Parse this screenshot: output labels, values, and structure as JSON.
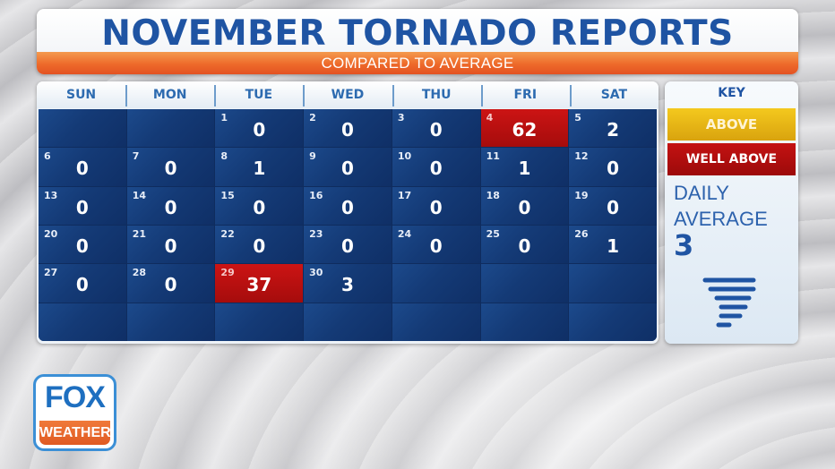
{
  "header": {
    "title": "NOVEMBER TORNADO REPORTS",
    "subtitle": "COMPARED TO AVERAGE"
  },
  "calendar": {
    "days_of_week": [
      "SUN",
      "MON",
      "TUE",
      "WED",
      "THU",
      "FRI",
      "SAT"
    ],
    "cells": [
      {
        "day": "",
        "count": "",
        "status": "empty"
      },
      {
        "day": "",
        "count": "",
        "status": "empty"
      },
      {
        "day": "1",
        "count": "0",
        "status": "normal"
      },
      {
        "day": "2",
        "count": "0",
        "status": "normal"
      },
      {
        "day": "3",
        "count": "0",
        "status": "normal"
      },
      {
        "day": "4",
        "count": "62",
        "status": "well-above"
      },
      {
        "day": "5",
        "count": "2",
        "status": "normal"
      },
      {
        "day": "6",
        "count": "0",
        "status": "normal"
      },
      {
        "day": "7",
        "count": "0",
        "status": "normal"
      },
      {
        "day": "8",
        "count": "1",
        "status": "normal"
      },
      {
        "day": "9",
        "count": "0",
        "status": "normal"
      },
      {
        "day": "10",
        "count": "0",
        "status": "normal"
      },
      {
        "day": "11",
        "count": "1",
        "status": "normal"
      },
      {
        "day": "12",
        "count": "0",
        "status": "normal"
      },
      {
        "day": "13",
        "count": "0",
        "status": "normal"
      },
      {
        "day": "14",
        "count": "0",
        "status": "normal"
      },
      {
        "day": "15",
        "count": "0",
        "status": "normal"
      },
      {
        "day": "16",
        "count": "0",
        "status": "normal"
      },
      {
        "day": "17",
        "count": "0",
        "status": "normal"
      },
      {
        "day": "18",
        "count": "0",
        "status": "normal"
      },
      {
        "day": "19",
        "count": "0",
        "status": "normal"
      },
      {
        "day": "20",
        "count": "0",
        "status": "normal"
      },
      {
        "day": "21",
        "count": "0",
        "status": "normal"
      },
      {
        "day": "22",
        "count": "0",
        "status": "normal"
      },
      {
        "day": "23",
        "count": "0",
        "status": "normal"
      },
      {
        "day": "24",
        "count": "0",
        "status": "normal"
      },
      {
        "day": "25",
        "count": "0",
        "status": "normal"
      },
      {
        "day": "26",
        "count": "1",
        "status": "normal"
      },
      {
        "day": "27",
        "count": "0",
        "status": "normal"
      },
      {
        "day": "28",
        "count": "0",
        "status": "normal"
      },
      {
        "day": "29",
        "count": "37",
        "status": "well-above"
      },
      {
        "day": "30",
        "count": "3",
        "status": "normal"
      },
      {
        "day": "",
        "count": "",
        "status": "empty"
      },
      {
        "day": "",
        "count": "",
        "status": "empty"
      },
      {
        "day": "",
        "count": "",
        "status": "empty"
      },
      {
        "day": "",
        "count": "",
        "status": "empty"
      },
      {
        "day": "",
        "count": "",
        "status": "empty"
      },
      {
        "day": "",
        "count": "",
        "status": "empty"
      },
      {
        "day": "",
        "count": "",
        "status": "empty"
      },
      {
        "day": "",
        "count": "",
        "status": "empty"
      },
      {
        "day": "",
        "count": "",
        "status": "empty"
      },
      {
        "day": "",
        "count": "",
        "status": "empty"
      }
    ]
  },
  "key": {
    "title": "KEY",
    "above_label": "ABOVE",
    "well_above_label": "WELL ABOVE",
    "daily_average_label": "DAILY AVERAGE",
    "daily_average_value": "3",
    "icon": "tornado-icon"
  },
  "colors": {
    "title_blue": "#1f54a3",
    "subtitle_orange": "#ee6a2a",
    "cell_blue": "#143a76",
    "well_above_red": "#c41212",
    "above_yellow": "#f1c21c"
  },
  "logo": {
    "top": "FOX",
    "bottom": "WEATHER"
  },
  "chart_data": {
    "type": "table",
    "title": "NOVEMBER TORNADO REPORTS",
    "subtitle": "COMPARED TO AVERAGE",
    "x": [
      1,
      2,
      3,
      4,
      5,
      6,
      7,
      8,
      9,
      10,
      11,
      12,
      13,
      14,
      15,
      16,
      17,
      18,
      19,
      20,
      21,
      22,
      23,
      24,
      25,
      26,
      27,
      28,
      29,
      30
    ],
    "values": [
      0,
      0,
      0,
      62,
      2,
      0,
      0,
      1,
      0,
      0,
      1,
      0,
      0,
      0,
      0,
      0,
      0,
      0,
      0,
      0,
      0,
      0,
      0,
      0,
      0,
      1,
      0,
      0,
      37,
      3
    ],
    "daily_average": 3,
    "well_above_days": [
      4,
      29
    ],
    "legend": [
      "ABOVE",
      "WELL ABOVE"
    ]
  }
}
